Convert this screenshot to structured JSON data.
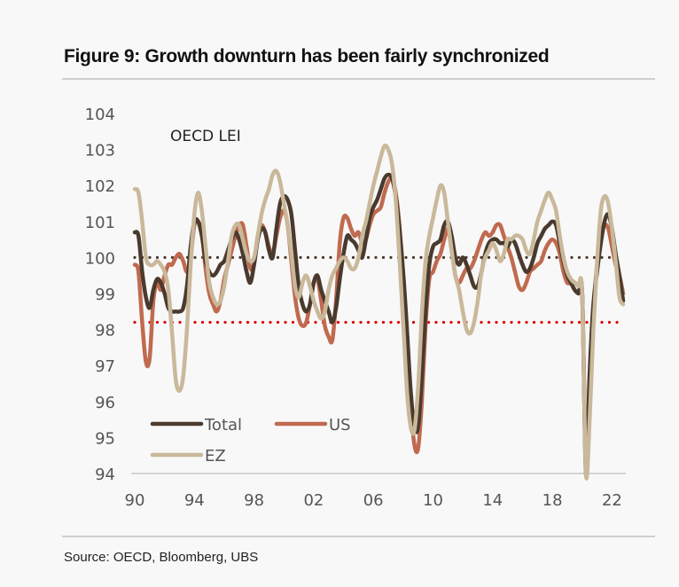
{
  "title": "Figure 9: Growth downturn has been fairly synchronized",
  "source": "Source: OECD, Bloomberg, UBS",
  "chart_data": {
    "type": "line",
    "title": "Figure 9: Growth downturn has been fairly synchronized",
    "annotation": "OECD LEI",
    "xlabel": "",
    "ylabel": "",
    "ylim": [
      94,
      104
    ],
    "xlim": [
      1990,
      2022.8
    ],
    "y_ticks": [
      94,
      95,
      96,
      97,
      98,
      99,
      100,
      101,
      102,
      103,
      104
    ],
    "x_ticks": [
      {
        "value": 1990,
        "label": "90"
      },
      {
        "value": 1994,
        "label": "94"
      },
      {
        "value": 1998,
        "label": "98"
      },
      {
        "value": 2002,
        "label": "02"
      },
      {
        "value": 2006,
        "label": "06"
      },
      {
        "value": 2010,
        "label": "10"
      },
      {
        "value": 2014,
        "label": "14"
      },
      {
        "value": 2018,
        "label": "18"
      },
      {
        "value": 2022,
        "label": "22"
      }
    ],
    "grid": false,
    "legend": {
      "placement": "bottom-left",
      "entries": [
        "Total",
        "US",
        "EZ"
      ]
    },
    "reference_lines": [
      {
        "name": "100 baseline",
        "value": 100,
        "color": "#4a3a30",
        "style": "dotted"
      },
      {
        "name": "recession threshold",
        "value": 98.2,
        "color": "#e00000",
        "style": "dotted"
      }
    ],
    "x": [
      1990.0,
      1990.25,
      1990.5,
      1990.75,
      1991.0,
      1991.25,
      1991.5,
      1991.75,
      1992.0,
      1992.25,
      1992.5,
      1992.75,
      1993.0,
      1993.25,
      1993.5,
      1993.75,
      1994.0,
      1994.25,
      1994.5,
      1994.75,
      1995.0,
      1995.25,
      1995.5,
      1995.75,
      1996.0,
      1996.25,
      1996.5,
      1996.75,
      1997.0,
      1997.25,
      1997.5,
      1997.75,
      1998.0,
      1998.25,
      1998.5,
      1998.75,
      1999.0,
      1999.25,
      1999.5,
      1999.75,
      2000.0,
      2000.25,
      2000.5,
      2000.75,
      2001.0,
      2001.25,
      2001.5,
      2001.75,
      2002.0,
      2002.25,
      2002.5,
      2002.75,
      2003.0,
      2003.25,
      2003.5,
      2003.75,
      2004.0,
      2004.25,
      2004.5,
      2004.75,
      2005.0,
      2005.25,
      2005.5,
      2005.75,
      2006.0,
      2006.25,
      2006.5,
      2006.75,
      2007.0,
      2007.25,
      2007.5,
      2007.75,
      2008.0,
      2008.25,
      2008.5,
      2008.75,
      2009.0,
      2009.25,
      2009.5,
      2009.75,
      2010.0,
      2010.25,
      2010.5,
      2010.75,
      2011.0,
      2011.25,
      2011.5,
      2011.75,
      2012.0,
      2012.25,
      2012.5,
      2012.75,
      2013.0,
      2013.25,
      2013.5,
      2013.75,
      2014.0,
      2014.25,
      2014.5,
      2014.75,
      2015.0,
      2015.25,
      2015.5,
      2015.75,
      2016.0,
      2016.25,
      2016.5,
      2016.75,
      2017.0,
      2017.25,
      2017.5,
      2017.75,
      2018.0,
      2018.25,
      2018.5,
      2018.75,
      2019.0,
      2019.25,
      2019.5,
      2019.75,
      2020.0,
      2020.25,
      2020.5,
      2020.75,
      2021.0,
      2021.25,
      2021.5,
      2021.75,
      2022.0,
      2022.25,
      2022.5,
      2022.75
    ],
    "series": [
      {
        "name": "Total",
        "color": "#4a3a2e",
        "values": [
          100.7,
          100.6,
          99.6,
          98.9,
          98.6,
          99.1,
          99.4,
          99.3,
          99.0,
          98.6,
          98.5,
          98.5,
          98.5,
          98.6,
          99.2,
          100.3,
          101.0,
          101.0,
          100.6,
          99.9,
          99.6,
          99.5,
          99.6,
          99.8,
          99.9,
          100.2,
          100.5,
          100.7,
          100.5,
          100.1,
          99.6,
          99.3,
          99.8,
          100.5,
          100.8,
          100.7,
          100.2,
          100.0,
          100.8,
          101.5,
          101.7,
          101.6,
          101.2,
          100.2,
          99.2,
          98.7,
          98.5,
          98.7,
          99.3,
          99.5,
          99.1,
          98.8,
          98.5,
          98.2,
          98.6,
          99.4,
          100.1,
          100.6,
          100.5,
          100.4,
          100.2,
          100.0,
          100.5,
          101.1,
          101.4,
          101.6,
          101.9,
          102.2,
          102.3,
          102.2,
          101.7,
          100.8,
          99.6,
          98.0,
          96.3,
          95.3,
          95.3,
          96.7,
          98.5,
          99.8,
          100.3,
          100.4,
          100.5,
          100.9,
          101.0,
          100.6,
          100.0,
          99.8,
          100.0,
          99.8,
          99.5,
          99.2,
          99.2,
          99.6,
          100.1,
          100.4,
          100.5,
          100.5,
          100.4,
          100.4,
          100.3,
          100.5,
          100.4,
          100.1,
          99.8,
          99.6,
          99.7,
          100.0,
          100.4,
          100.6,
          100.8,
          100.9,
          101.0,
          100.9,
          100.4,
          99.9,
          99.5,
          99.3,
          99.1,
          99.0,
          99.0,
          94.0,
          96.8,
          98.7,
          99.6,
          100.4,
          101.0,
          101.2,
          100.8,
          100.1,
          99.5,
          98.8
        ]
      },
      {
        "name": "US",
        "color": "#c06a4f",
        "values": [
          99.8,
          99.6,
          98.2,
          97.1,
          97.2,
          98.8,
          99.3,
          99.1,
          99.5,
          99.8,
          99.8,
          100.0,
          100.1,
          99.9,
          99.6,
          100.0,
          100.9,
          101.0,
          100.7,
          99.7,
          99.0,
          98.7,
          98.5,
          98.8,
          99.4,
          99.8,
          100.2,
          100.6,
          100.9,
          100.9,
          100.3,
          99.7,
          99.8,
          100.6,
          100.9,
          100.7,
          100.3,
          100.1,
          100.6,
          101.1,
          101.3,
          100.9,
          99.9,
          98.9,
          98.3,
          98.1,
          98.2,
          98.7,
          99.3,
          99.4,
          98.8,
          98.1,
          97.8,
          97.7,
          98.8,
          100.4,
          101.1,
          101.1,
          100.8,
          100.6,
          100.7,
          100.4,
          100.5,
          100.9,
          101.2,
          101.3,
          101.4,
          101.8,
          102.1,
          102.2,
          101.8,
          100.9,
          99.4,
          97.7,
          95.9,
          94.8,
          94.7,
          96.0,
          98.1,
          99.4,
          99.6,
          99.9,
          100.1,
          100.5,
          100.8,
          100.2,
          99.5,
          99.3,
          99.5,
          99.7,
          99.7,
          99.9,
          100.2,
          100.5,
          100.7,
          100.6,
          100.7,
          100.9,
          100.9,
          100.6,
          100.3,
          100.0,
          99.6,
          99.2,
          99.1,
          99.3,
          99.6,
          99.7,
          99.8,
          99.9,
          100.2,
          100.4,
          100.5,
          100.4,
          100.1,
          99.6,
          99.3,
          99.3,
          99.3,
          99.2,
          99.0,
          94.5,
          96.6,
          98.5,
          99.8,
          100.5,
          100.9,
          100.8,
          100.3,
          99.8,
          99.5,
          99.0
        ]
      },
      {
        "name": "EZ",
        "color": "#c9b89a",
        "values": [
          101.9,
          101.8,
          101.0,
          100.0,
          99.8,
          99.8,
          99.9,
          99.8,
          99.6,
          99.1,
          97.9,
          96.6,
          96.3,
          96.7,
          98.0,
          99.8,
          101.2,
          101.8,
          101.3,
          100.3,
          99.3,
          98.9,
          98.7,
          98.8,
          99.2,
          99.9,
          100.6,
          100.9,
          100.9,
          100.5,
          100.1,
          99.9,
          100.0,
          100.6,
          101.2,
          101.6,
          101.9,
          102.3,
          102.4,
          102.1,
          101.5,
          100.9,
          100.1,
          99.2,
          98.9,
          99.3,
          99.5,
          99.2,
          98.8,
          98.5,
          98.3,
          98.5,
          99.1,
          99.5,
          99.7,
          99.9,
          100.0,
          99.9,
          99.7,
          99.7,
          100.0,
          100.6,
          101.0,
          101.5,
          102.0,
          102.4,
          102.8,
          103.1,
          103.0,
          102.6,
          101.6,
          100.0,
          98.2,
          96.3,
          95.3,
          95.2,
          96.4,
          98.4,
          99.9,
          100.6,
          101.1,
          101.6,
          102.0,
          101.8,
          101.0,
          100.2,
          99.5,
          99.1,
          98.5,
          98.0,
          97.9,
          98.2,
          98.8,
          99.6,
          100.0,
          100.2,
          100.4,
          100.2,
          99.9,
          100.1,
          100.5,
          100.5,
          100.6,
          100.6,
          100.5,
          100.2,
          100.1,
          100.5,
          101.0,
          101.3,
          101.6,
          101.8,
          101.6,
          101.3,
          100.6,
          100.0,
          99.6,
          99.4,
          99.3,
          99.2,
          99.0,
          94.0,
          95.5,
          98.0,
          99.9,
          101.3,
          101.7,
          101.5,
          100.8,
          99.9,
          98.9,
          98.7
        ]
      }
    ]
  }
}
